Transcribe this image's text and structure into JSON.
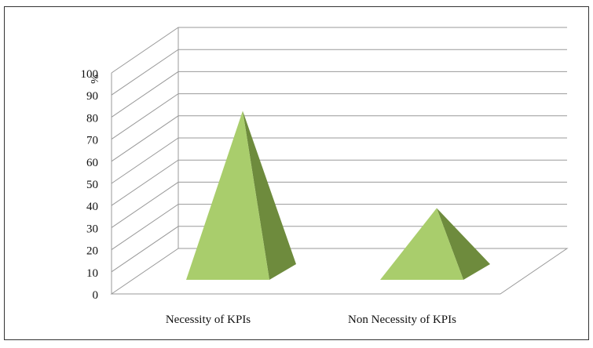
{
  "chart_data": {
    "type": "bar",
    "style": "3d-pyramid",
    "categories": [
      "Necessity of KPIs",
      "Non Necessity of KPIs"
    ],
    "values": [
      80,
      36
    ],
    "ylabel": "%",
    "ylim": [
      0,
      100
    ],
    "yticks": [
      0,
      10,
      20,
      30,
      40,
      50,
      60,
      70,
      80,
      90,
      100
    ],
    "grid": true,
    "legend": "none",
    "colors": {
      "front": "#a9cd6c",
      "side": "#6e8b3d",
      "grid": "#999999",
      "frame": "#333333"
    }
  }
}
